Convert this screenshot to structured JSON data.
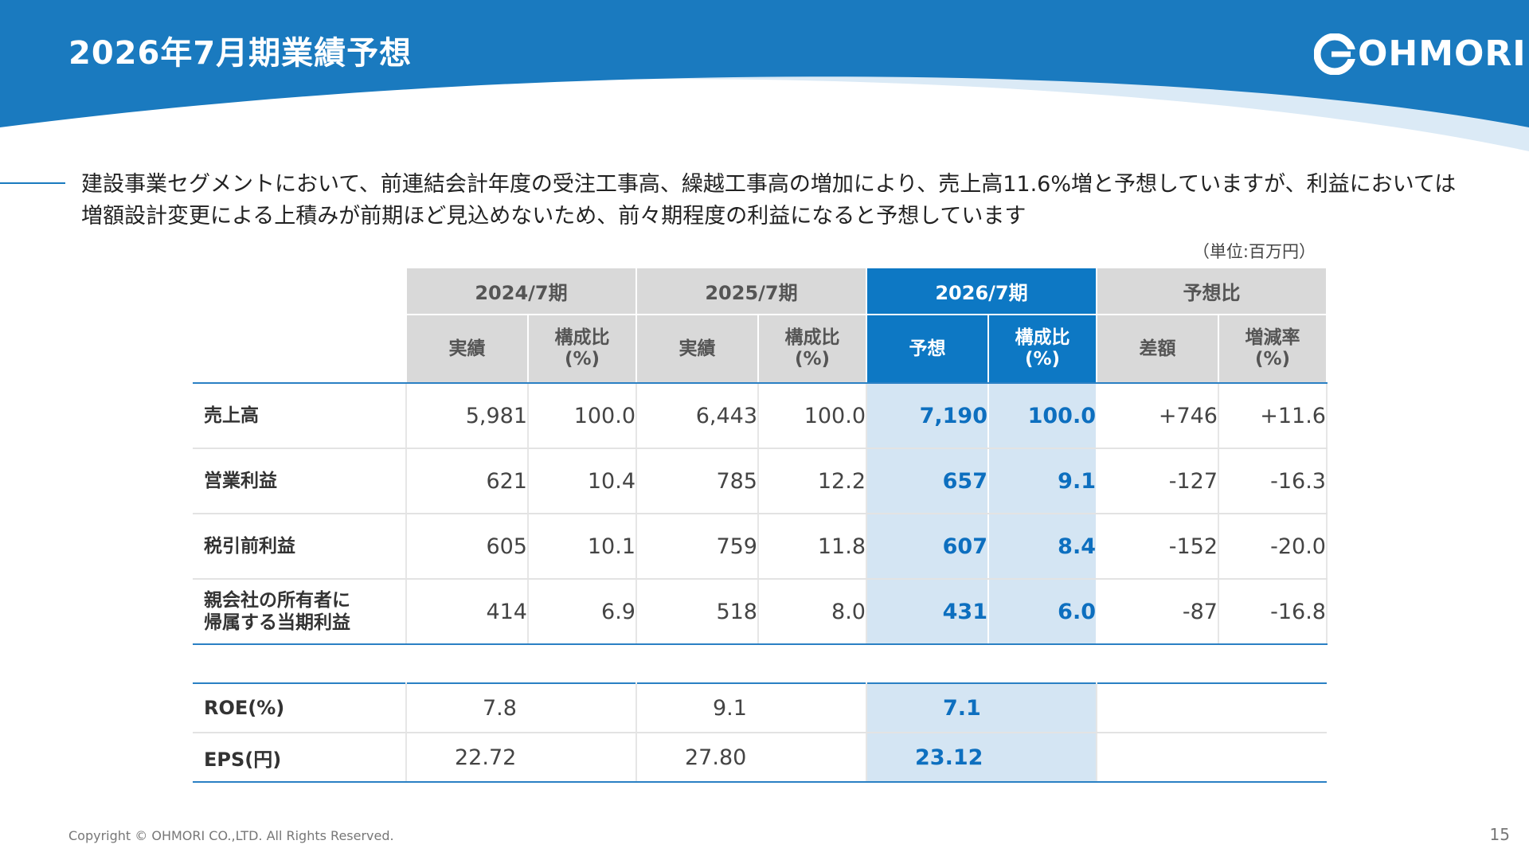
{
  "header": {
    "title": "2026年7月期業績予想",
    "logo": "OHMORI"
  },
  "description": "建設事業セグメントにおいて、前連結会計年度の受注工事高、繰越工事高の増加により、売上高11.6%増と予想していますが、利益においては増額設計変更による上積みが前期ほど見込めないため、前々期程度の利益になると予想しています",
  "unit": "（単位:百万円）",
  "table": {
    "periods": [
      "2024/7期",
      "2025/7期",
      "2026/7期",
      "予想比"
    ],
    "subheaders": {
      "actual": "実績",
      "ratio_line1": "構成比",
      "ratio_line2": "(%)",
      "forecast": "予想",
      "diff": "差額",
      "rate_line1": "増減率",
      "rate_line2": "(%)"
    },
    "rows": [
      {
        "label": "売上高",
        "v": [
          "5,981",
          "100.0",
          "6,443",
          "100.0",
          "7,190",
          "100.0",
          "+746",
          "+11.6"
        ]
      },
      {
        "label": "営業利益",
        "v": [
          "621",
          "10.4",
          "785",
          "12.2",
          "657",
          "9.1",
          "-127",
          "-16.3"
        ]
      },
      {
        "label": "税引前利益",
        "v": [
          "605",
          "10.1",
          "759",
          "11.8",
          "607",
          "8.4",
          "-152",
          "-20.0"
        ]
      },
      {
        "label_line1": "親会社の所有者に",
        "label_line2": "帰属する当期利益",
        "v": [
          "414",
          "6.9",
          "518",
          "8.0",
          "431",
          "6.0",
          "-87",
          "-16.8"
        ]
      }
    ],
    "metrics": [
      {
        "label": "ROE(%)",
        "v": [
          "7.8",
          "9.1",
          "7.1"
        ]
      },
      {
        "label": "EPS(円)",
        "v": [
          "22.72",
          "27.80",
          "23.12"
        ]
      }
    ]
  },
  "footer": {
    "copyright": "Copyright © OHMORI CO.,LTD. All Rights Reserved.",
    "page": "15"
  },
  "colors": {
    "brand_blue": "#1a7abf",
    "highlight_header": "#0d78c4",
    "highlight_cell": "#d4e5f3",
    "highlight_text": "#0d6fbf"
  }
}
